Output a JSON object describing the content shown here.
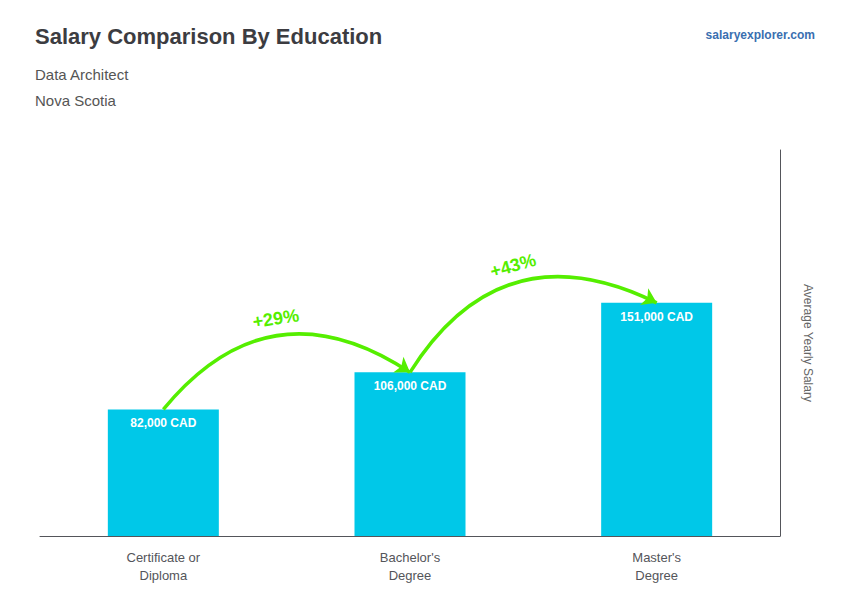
{
  "chart_data": {
    "type": "bar",
    "title": "Salary Comparison By Education",
    "subtitle": [
      "Data Architect",
      "Nova Scotia"
    ],
    "source": "salaryexplorer.com",
    "ylabel": "Average Yearly Salary",
    "categories": [
      "Certificate or\nDiploma",
      "Bachelor's\nDegree",
      "Master's\nDegree"
    ],
    "values": [
      82000,
      106000,
      151000
    ],
    "value_labels": [
      "82,000 CAD",
      "106,000 CAD",
      "151,000 CAD"
    ],
    "data_labels": true,
    "color": "#00c8e8",
    "ylim": [
      0,
      250000
    ],
    "grid": false,
    "tick_labels": "x",
    "annotations": [
      {
        "text": "+29%",
        "from": "Certificate or\nDiploma",
        "to": "Bachelor's\nDegree",
        "color": "#55ee00"
      },
      {
        "text": "+43%",
        "from": "Bachelor's\nDegree",
        "to": "Master's\nDegree",
        "color": "#55ee00"
      }
    ]
  }
}
